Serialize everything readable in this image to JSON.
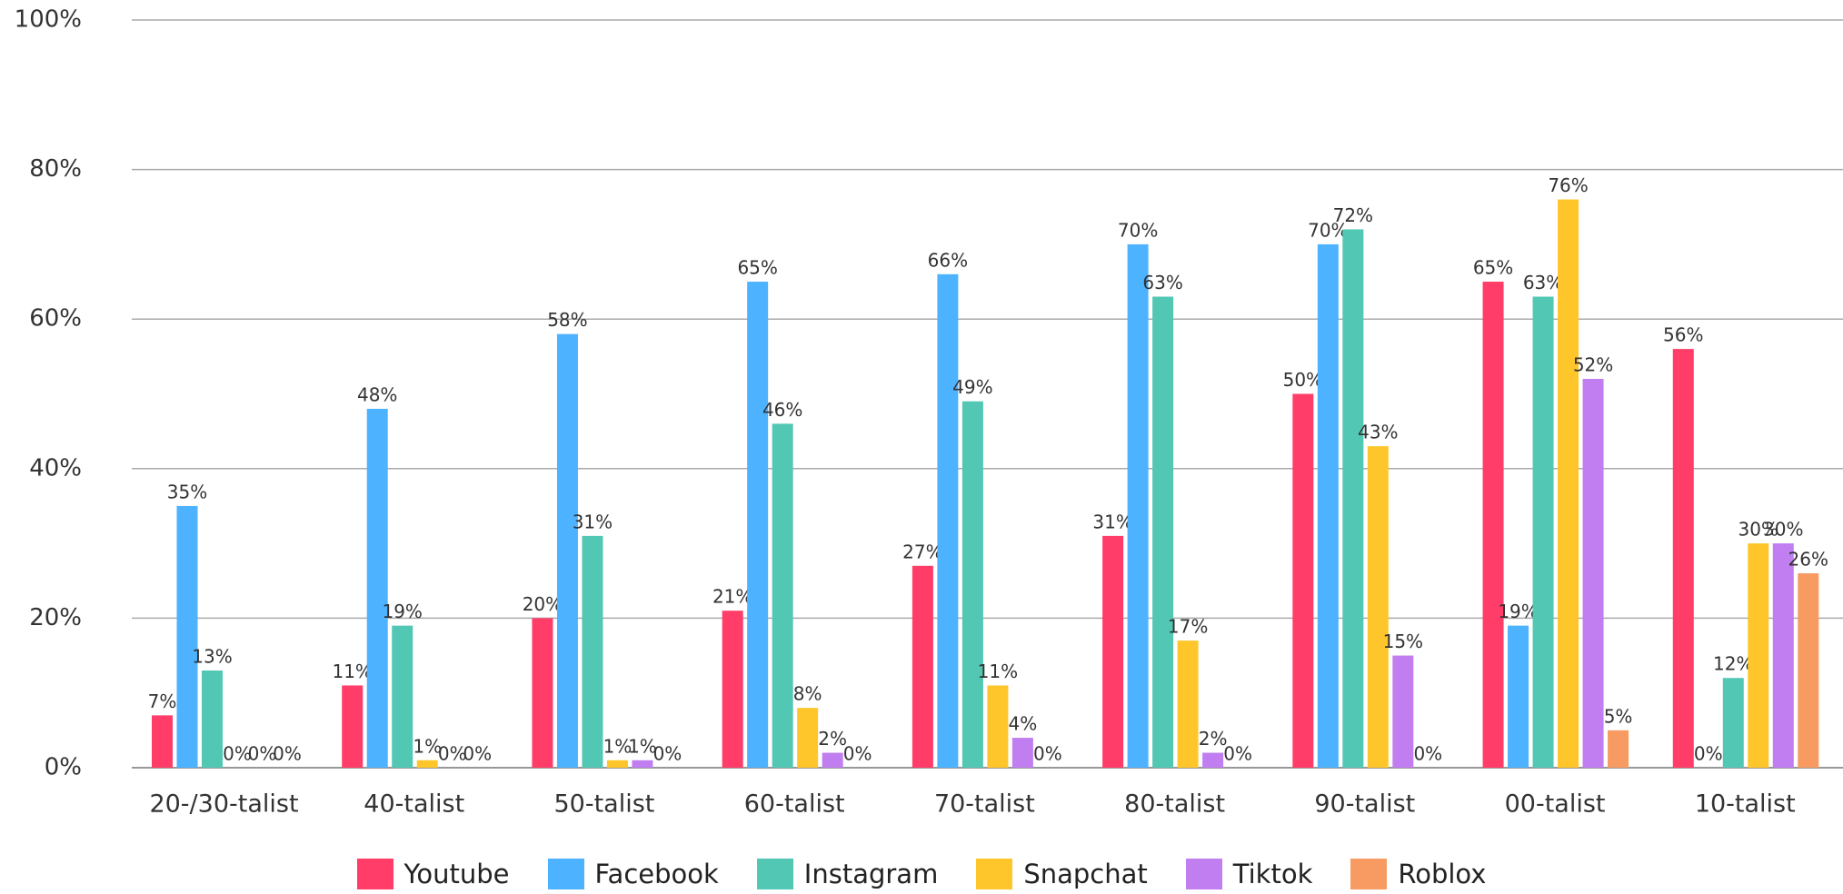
{
  "chart_data": {
    "type": "bar",
    "categories": [
      "20-/30-talist",
      "40-talist",
      "50-talist",
      "60-talist",
      "70-talist",
      "80-talist",
      "90-talist",
      "00-talist",
      "10-talist"
    ],
    "series": [
      {
        "name": "Youtube",
        "color": "#ff3d68",
        "values": [
          7,
          11,
          20,
          21,
          27,
          31,
          50,
          65,
          56
        ],
        "value_labels": [
          "7%",
          "11%",
          "20%",
          "21%",
          "27%",
          "31%",
          "50%",
          "65%",
          "56%"
        ]
      },
      {
        "name": "Facebook",
        "color": "#4db2ff",
        "values": [
          35,
          48,
          58,
          65,
          66,
          70,
          70,
          19,
          0
        ],
        "value_labels": [
          "35%",
          "48%",
          "58%",
          "65%",
          "66%",
          "70%",
          "70%",
          "19%",
          "0%"
        ]
      },
      {
        "name": "Instagram",
        "color": "#52c7b4",
        "values": [
          13,
          19,
          31,
          46,
          49,
          63,
          72,
          63,
          12
        ],
        "value_labels": [
          "13%",
          "19%",
          "31%",
          "46%",
          "49%",
          "63%",
          "72%",
          "63%",
          "12%"
        ]
      },
      {
        "name": "Snapchat",
        "color": "#ffc62b",
        "values": [
          0,
          1,
          1,
          8,
          11,
          17,
          43,
          76,
          30
        ],
        "value_labels": [
          "0%",
          "1%",
          "1%",
          "8%",
          "11%",
          "17%",
          "43%",
          "76%",
          "30%"
        ]
      },
      {
        "name": "Tiktok",
        "color": "#c07ef0",
        "values": [
          0,
          0,
          1,
          2,
          4,
          2,
          15,
          52,
          30
        ],
        "value_labels": [
          "0%",
          "0%",
          "1%",
          "2%",
          "4%",
          "2%",
          "15%",
          "52%",
          "30%"
        ]
      },
      {
        "name": "Roblox",
        "color": "#f79b62",
        "values": [
          0,
          0,
          0,
          0,
          0,
          0,
          0,
          5,
          26
        ],
        "value_labels": [
          "0%",
          "0%",
          "0%",
          "0%",
          "0%",
          "0%",
          "0%",
          "5%",
          "26%"
        ]
      }
    ],
    "ylim": [
      0,
      100
    ],
    "yticks": [
      {
        "value": 0,
        "label": "0%"
      },
      {
        "value": 20,
        "label": "20%"
      },
      {
        "value": 40,
        "label": "40%"
      },
      {
        "value": 60,
        "label": "60%"
      },
      {
        "value": 80,
        "label": "80%"
      },
      {
        "value": 100,
        "label": "100%"
      }
    ],
    "grid": true,
    "legend": "bottom"
  }
}
